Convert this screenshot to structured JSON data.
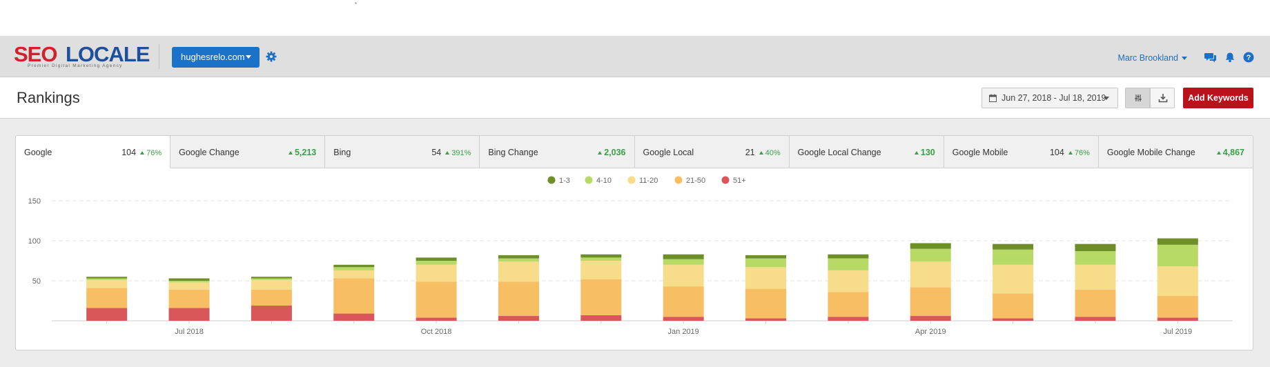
{
  "app": {
    "logo_main_a": "SEO",
    "logo_main_b": "LOCALE",
    "logo_tagline": "Premier Digital Marketing Agency",
    "site_selector": "hughesrelo.com",
    "user_name": "Marc Brookland"
  },
  "icons": {
    "settings": "gear-icon",
    "chat": "chat-icon",
    "notifications": "bell-icon",
    "help": "help-icon",
    "calendar": "calendar-icon",
    "filter": "sliders-icon",
    "download": "download-icon"
  },
  "page": {
    "title": "Rankings",
    "date_range": "Jun 27, 2018 - Jul 18, 2019",
    "add_keywords_label": "Add Keywords"
  },
  "tabs": [
    {
      "label": "Google",
      "value": "104",
      "change": "76%",
      "type": "pct",
      "active": true
    },
    {
      "label": "Google Change",
      "value": "",
      "change": "5,213",
      "type": "abs",
      "active": false
    },
    {
      "label": "Bing",
      "value": "54",
      "change": "391%",
      "type": "pct",
      "active": false
    },
    {
      "label": "Bing Change",
      "value": "",
      "change": "2,036",
      "type": "abs",
      "active": false
    },
    {
      "label": "Google Local",
      "value": "21",
      "change": "40%",
      "type": "pct",
      "active": false
    },
    {
      "label": "Google Local Change",
      "value": "",
      "change": "130",
      "type": "abs",
      "active": false
    },
    {
      "label": "Google Mobile",
      "value": "104",
      "change": "76%",
      "type": "pct",
      "active": false
    },
    {
      "label": "Google Mobile Change",
      "value": "",
      "change": "4,867",
      "type": "abs",
      "active": false
    }
  ],
  "colors": {
    "accent": "#1a73c9",
    "add_button": "#b9121b",
    "positive": "#3aa048"
  },
  "chart_data": {
    "type": "bar",
    "stacked": true,
    "title": "",
    "xlabel": "",
    "ylabel": "",
    "ylim": [
      0,
      150
    ],
    "y_ticks": [
      50,
      100,
      150
    ],
    "x_tick_labels": [
      {
        "label": "Jul 2018",
        "at_bar": 1
      },
      {
        "label": "Oct 2018",
        "at_bar": 4
      },
      {
        "label": "Jan 2019",
        "at_bar": 7
      },
      {
        "label": "Apr 2019",
        "at_bar": 10
      },
      {
        "label": "Jul 2019",
        "at_bar": 13
      }
    ],
    "legend_position": "top-center",
    "series": [
      {
        "name": "51+",
        "color": "#d9575a",
        "values": [
          16,
          16,
          19,
          9,
          4,
          6,
          7,
          5,
          3,
          5,
          6,
          3,
          5,
          4
        ]
      },
      {
        "name": "21-50",
        "color": "#f7be63",
        "values": [
          25,
          23,
          20,
          44,
          45,
          43,
          45,
          38,
          37,
          31,
          36,
          31,
          34,
          27
        ]
      },
      {
        "name": "11-20",
        "color": "#f7dc89",
        "values": [
          10,
          9,
          12,
          10,
          21,
          25,
          23,
          27,
          27,
          27,
          32,
          36,
          31,
          37
        ]
      },
      {
        "name": "4-10",
        "color": "#b7d966",
        "values": [
          2,
          2,
          2,
          4,
          5,
          4,
          4,
          7,
          11,
          15,
          16,
          19,
          17,
          27
        ]
      },
      {
        "name": "1-3",
        "color": "#6e8f27",
        "values": [
          2,
          3,
          2,
          3,
          4,
          4,
          4,
          6,
          4,
          5,
          7,
          7,
          9,
          8
        ]
      }
    ],
    "legend_order": [
      "1-3",
      "4-10",
      "11-20",
      "21-50",
      "51+"
    ]
  }
}
